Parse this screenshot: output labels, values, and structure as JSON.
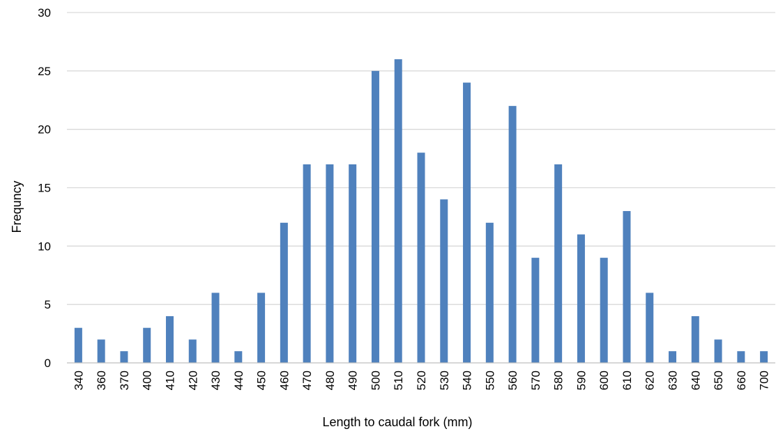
{
  "chart_data": {
    "type": "bar",
    "title": "",
    "xlabel": "Length to caudal fork (mm)",
    "ylabel": "Frequncy",
    "categories": [
      "340",
      "360",
      "370",
      "400",
      "410",
      "420",
      "430",
      "440",
      "450",
      "460",
      "470",
      "480",
      "490",
      "500",
      "510",
      "520",
      "530",
      "540",
      "550",
      "560",
      "570",
      "580",
      "590",
      "600",
      "610",
      "620",
      "630",
      "640",
      "650",
      "660",
      "700"
    ],
    "values": [
      3,
      2,
      1,
      3,
      4,
      2,
      6,
      1,
      6,
      12,
      17,
      17,
      17,
      25,
      26,
      18,
      14,
      24,
      12,
      22,
      9,
      17,
      11,
      9,
      13,
      6,
      1,
      4,
      2,
      1,
      1
    ],
    "ylim": [
      0,
      30
    ],
    "yticks": [
      0,
      5,
      10,
      15,
      20,
      25,
      30
    ],
    "grid": true,
    "legend": "none",
    "colors": {
      "bar": "#4f81bd",
      "grid": "#d9d9d9",
      "axis": "#bfbfbf"
    }
  }
}
